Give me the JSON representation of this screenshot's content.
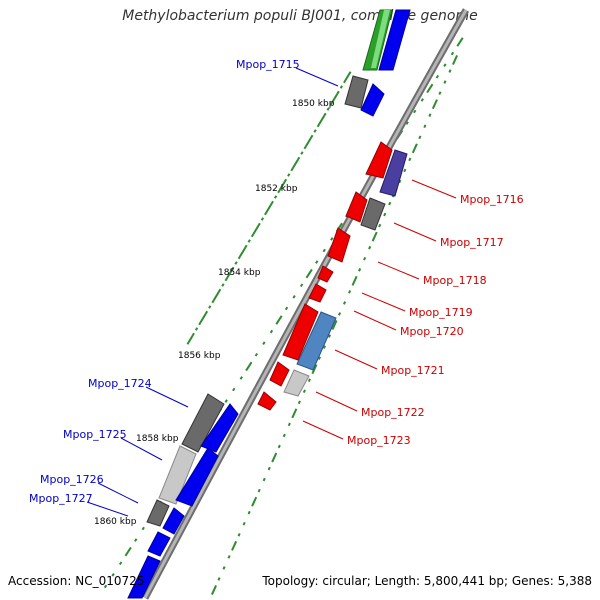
{
  "title": "Methylobacterium populi BJ001, complete genome",
  "footer": {
    "accession": "Accession: NC_010725",
    "topology": "Topology: circular; Length: 5,800,441 bp; Genes: 5,388"
  },
  "colors": {
    "forward_label": "#0000cc",
    "reverse_label": "#cc0000",
    "backbone": "#8a8a8a",
    "tick": "#2e8b2e"
  },
  "scale_labels": [
    "1850 kbp",
    "1852 kbp",
    "1854 kbp",
    "1856 kbp",
    "1858 kbp",
    "1860 kbp"
  ],
  "gene_labels": [
    {
      "text": "Mpop_1715",
      "strand": "forward"
    },
    {
      "text": "Mpop_1716",
      "strand": "reverse"
    },
    {
      "text": "Mpop_1717",
      "strand": "reverse"
    },
    {
      "text": "Mpop_1718",
      "strand": "reverse"
    },
    {
      "text": "Mpop_1719",
      "strand": "reverse"
    },
    {
      "text": "Mpop_1720",
      "strand": "reverse"
    },
    {
      "text": "Mpop_1721",
      "strand": "reverse"
    },
    {
      "text": "Mpop_1722",
      "strand": "reverse"
    },
    {
      "text": "Mpop_1723",
      "strand": "reverse"
    },
    {
      "text": "Mpop_1724",
      "strand": "forward"
    },
    {
      "text": "Mpop_1725",
      "strand": "forward"
    },
    {
      "text": "Mpop_1726",
      "strand": "forward"
    },
    {
      "text": "Mpop_1727",
      "strand": "forward"
    }
  ]
}
